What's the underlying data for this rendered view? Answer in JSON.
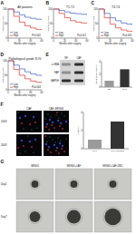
{
  "figure": {
    "panel_labels": [
      "A",
      "B",
      "C",
      "D",
      "E",
      "F",
      "G"
    ],
    "blot": {
      "labels": [
        "α-SMA",
        "FAP",
        "GAPDH"
      ],
      "lanes": [
        "NF",
        "CAF"
      ]
    },
    "fluorescence": {
      "rows": [
        "100X",
        "200X"
      ],
      "columns": [
        "CAF",
        "CAF+MKN45"
      ]
    },
    "spheroid": {
      "rows": [
        "Day1",
        "Day7"
      ],
      "columns": [
        "MKN45",
        "MKN45+CAF",
        "MKN45+CAF+NSC"
      ]
    }
  },
  "chart_data": [
    {
      "type": "line",
      "line_style": "step",
      "title": "All patients",
      "x_label": "Months after surgery",
      "y_label": "Overall survival",
      "x": [
        0,
        10,
        20,
        30,
        40,
        50,
        60
      ],
      "xlim": [
        0,
        60
      ],
      "xticks": [
        0,
        20,
        40,
        60
      ],
      "ylim": [
        0,
        100
      ],
      "yticks": [
        0,
        50,
        100
      ],
      "legend": "lower left",
      "annotation": "P<0.001",
      "series": [
        {
          "name": "Low",
          "color": "#3b5fc0",
          "values": [
            100,
            90,
            80,
            72,
            68,
            65,
            63
          ]
        },
        {
          "name": "High",
          "color": "#d9342b",
          "values": [
            100,
            75,
            55,
            42,
            35,
            30,
            28
          ]
        }
      ]
    },
    {
      "type": "line",
      "line_style": "step",
      "title": "T1-T2",
      "x_label": "Months after surgery",
      "y_label": "Overall survival",
      "x": [
        0,
        10,
        20,
        30,
        40,
        50,
        60
      ],
      "xlim": [
        0,
        60
      ],
      "xticks": [
        0,
        20,
        40,
        60
      ],
      "ylim": [
        0,
        100
      ],
      "yticks": [
        0,
        50,
        100
      ],
      "legend": "lower left",
      "annotation": "P=0.012",
      "series": [
        {
          "name": "Low",
          "color": "#3b5fc0",
          "values": [
            100,
            95,
            90,
            86,
            84,
            82,
            80
          ]
        },
        {
          "name": "High",
          "color": "#d9342b",
          "values": [
            100,
            85,
            70,
            60,
            55,
            52,
            50
          ]
        }
      ]
    },
    {
      "type": "line",
      "line_style": "step",
      "title": "T3-T4",
      "x_label": "Months after surgery",
      "y_label": "Overall survival",
      "x": [
        0,
        10,
        20,
        30,
        40,
        50,
        60
      ],
      "xlim": [
        0,
        60
      ],
      "xticks": [
        0,
        20,
        40,
        60
      ],
      "ylim": [
        0,
        100
      ],
      "yticks": [
        0,
        50,
        100
      ],
      "legend": "lower left",
      "annotation": "P=0.003",
      "series": [
        {
          "name": "Low",
          "color": "#3b5fc0",
          "values": [
            100,
            85,
            70,
            60,
            52,
            48,
            45
          ]
        },
        {
          "name": "High",
          "color": "#d9342b",
          "values": [
            100,
            70,
            48,
            35,
            28,
            24,
            22
          ]
        }
      ]
    },
    {
      "type": "line",
      "line_style": "step",
      "title": "Pathological grade III-IV",
      "x_label": "Months after surgery",
      "y_label": "Overall survival",
      "x": [
        0,
        10,
        20,
        30,
        40,
        50,
        60
      ],
      "xlim": [
        0,
        60
      ],
      "xticks": [
        0,
        20,
        40,
        60
      ],
      "ylim": [
        0,
        100
      ],
      "yticks": [
        0,
        50,
        100
      ],
      "legend": "lower left",
      "annotation": "P=0.004",
      "series": [
        {
          "name": "Low",
          "color": "#3b5fc0",
          "values": [
            100,
            85,
            72,
            62,
            55,
            50,
            48
          ]
        },
        {
          "name": "High",
          "color": "#d9342b",
          "values": [
            100,
            70,
            50,
            38,
            30,
            26,
            24
          ]
        }
      ]
    },
    {
      "type": "bar",
      "y_label": "Relative expression",
      "categories": [
        "NF",
        "CAF"
      ],
      "values": [
        1,
        2.8
      ],
      "colors": [
        "#9a9a9a",
        "#333333"
      ],
      "ylim": [
        0,
        4
      ],
      "yticks": [
        0,
        2,
        4
      ]
    },
    {
      "type": "bar",
      "y_label": "Invasion",
      "categories": [
        "CAF",
        "CAF+MKN45"
      ],
      "values": [
        1,
        3
      ],
      "colors": [
        "#9a9a9a",
        "#333333"
      ],
      "ylim": [
        0,
        4
      ],
      "yticks": [
        0,
        2,
        4
      ]
    }
  ]
}
